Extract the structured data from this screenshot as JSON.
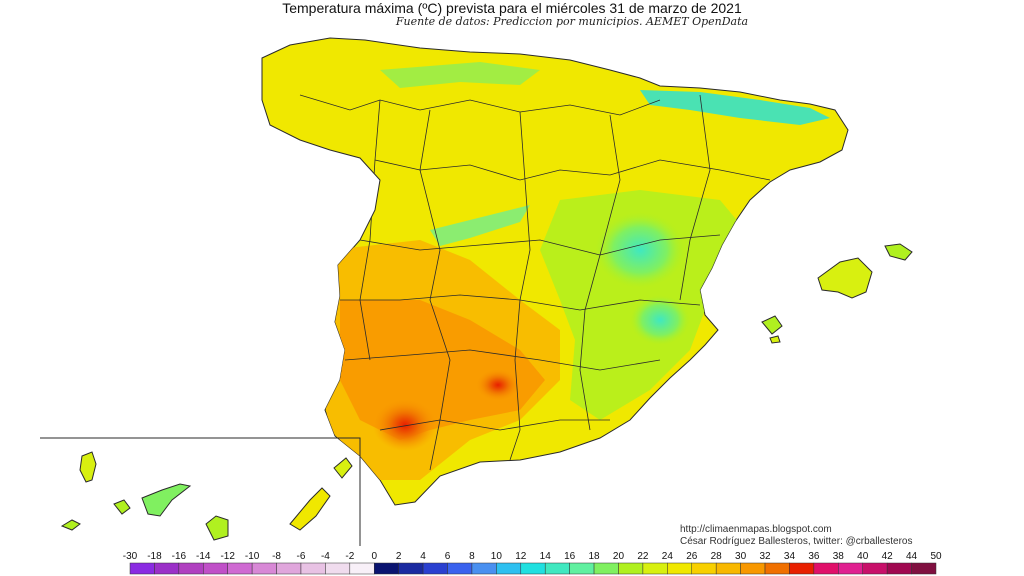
{
  "title": "Temperatura máxima (ºC) prevista para el miércoles 31 de marzo de 2021",
  "subtitle": "Fuente de datos: Prediccion por municipios. AEMET OpenData",
  "credits": {
    "url": "http://climaenmapas.blogspot.com",
    "author": "César Rodríguez Ballesteros, twitter: @crballesteros"
  },
  "legend": {
    "ticks": [
      "-30",
      "-18",
      "-16",
      "-14",
      "-12",
      "-10",
      "-8",
      "-6",
      "-4",
      "-2",
      "0",
      "2",
      "4",
      "6",
      "8",
      "10",
      "12",
      "14",
      "16",
      "18",
      "20",
      "22",
      "24",
      "26",
      "28",
      "30",
      "32",
      "34",
      "36",
      "38",
      "40",
      "42",
      "44",
      "50"
    ],
    "colors": [
      "#8a2be2",
      "#9b30c8",
      "#b040c0",
      "#c050c8",
      "#cf6ad2",
      "#d888d6",
      "#e0a6dc",
      "#e8c2e4",
      "#f0dcee",
      "#f8f0f8",
      "#0a1470",
      "#1a2aa0",
      "#2a40d0",
      "#3a62ee",
      "#4a90f0",
      "#2ec0f0",
      "#20e0e0",
      "#40e8c0",
      "#60f0a0",
      "#80f060",
      "#b0f020",
      "#d8f010",
      "#f0e800",
      "#f8d000",
      "#f8b800",
      "#f89800",
      "#f07000",
      "#e82000",
      "#e0106a",
      "#e02090",
      "#c8106a",
      "#a00850",
      "#801040"
    ]
  }
}
